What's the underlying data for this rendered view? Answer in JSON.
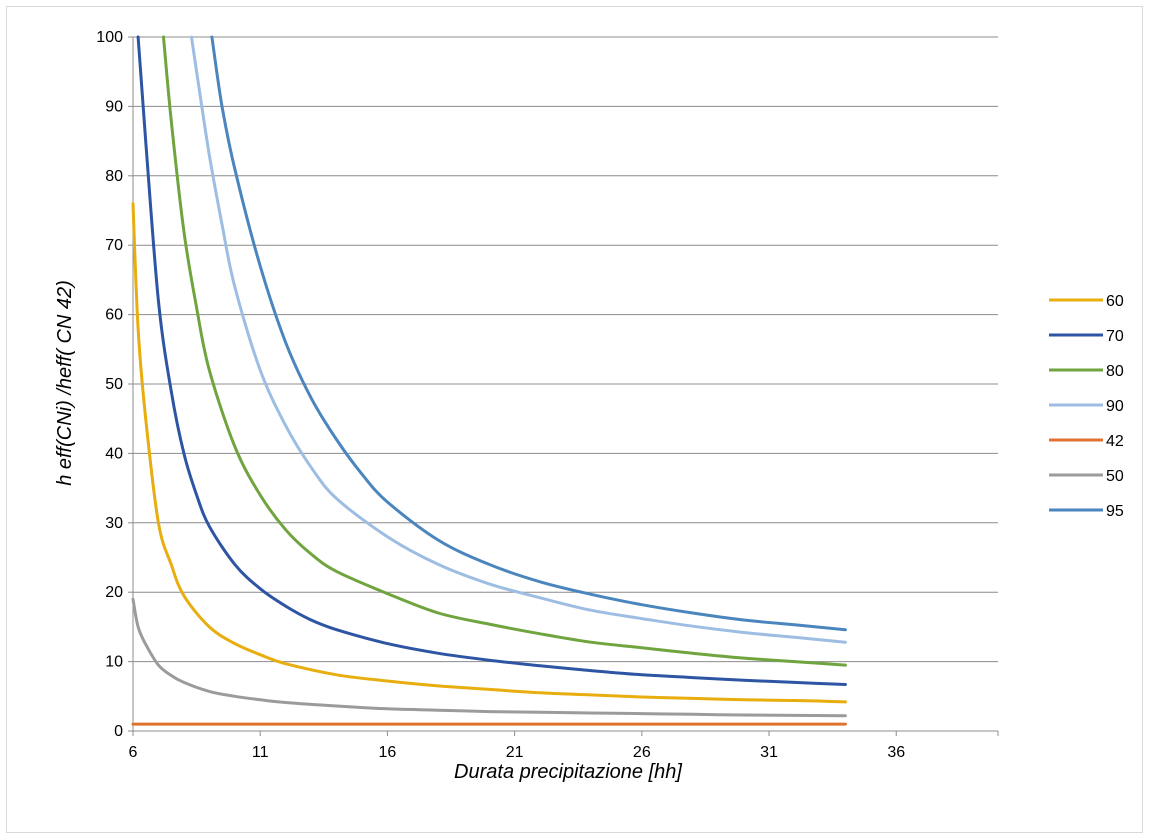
{
  "chart_data": {
    "type": "line",
    "title": "",
    "xlabel": "Durata precipitazione [hh]",
    "ylabel": "h eff(CNi) /heff( CN 42)",
    "xlim": [
      6,
      40
    ],
    "ylim": [
      0,
      100
    ],
    "x_ticks": [
      6,
      11,
      16,
      21,
      26,
      31,
      36
    ],
    "y_ticks": [
      0,
      10,
      20,
      30,
      40,
      50,
      60,
      70,
      80,
      90,
      100
    ],
    "grid": "horizontal",
    "legend_position": "right",
    "series": [
      {
        "name": "60",
        "color": "#e8ad0e",
        "x": [
          6,
          6.2,
          6.5,
          7,
          7.5,
          8,
          9,
          10,
          11,
          12,
          14,
          16,
          18,
          20,
          22,
          24,
          26,
          28,
          30,
          32,
          34
        ],
        "y": [
          76,
          58,
          45,
          30,
          24,
          19.5,
          15,
          12.6,
          11,
          9.7,
          8.1,
          7.2,
          6.5,
          6,
          5.5,
          5.2,
          4.9,
          4.7,
          4.5,
          4.4,
          4.2
        ]
      },
      {
        "name": "70",
        "color": "#2e55a3",
        "x": [
          6.2,
          6.5,
          7,
          7.5,
          8,
          8.5,
          9,
          10,
          11,
          12,
          13,
          14,
          16,
          18,
          20,
          22,
          24,
          26,
          28,
          30,
          32,
          34
        ],
        "y": [
          100,
          85,
          62,
          49,
          40,
          34,
          29.5,
          24,
          20.5,
          18,
          16,
          14.6,
          12.6,
          11.2,
          10.2,
          9.4,
          8.7,
          8.1,
          7.7,
          7.3,
          7,
          6.7
        ]
      },
      {
        "name": "80",
        "color": "#70a43f",
        "x": [
          7.2,
          7.5,
          8,
          8.5,
          9,
          10,
          11,
          12,
          13,
          14,
          16,
          18,
          20,
          22,
          24,
          26,
          28,
          30,
          32,
          34
        ],
        "y": [
          100,
          88,
          72,
          61,
          52,
          41,
          34,
          29,
          25.5,
          23,
          19.8,
          17,
          15.4,
          14,
          12.8,
          12,
          11.2,
          10.5,
          10,
          9.5
        ]
      },
      {
        "name": "90",
        "color": "#9dbde3",
        "x": [
          8.3,
          8.5,
          9,
          9.5,
          10,
          11,
          12,
          13,
          14,
          16,
          18,
          20,
          22,
          24,
          26,
          28,
          30,
          32,
          34
        ],
        "y": [
          100,
          95,
          83,
          73,
          64,
          52,
          44,
          38,
          33.5,
          28,
          24,
          21.2,
          19.2,
          17.4,
          16.2,
          15.1,
          14.2,
          13.5,
          12.8
        ]
      },
      {
        "name": "42",
        "color": "#e0722e",
        "x": [
          6,
          34
        ],
        "y": [
          1,
          1
        ]
      },
      {
        "name": "50",
        "color": "#9b9b9b",
        "x": [
          6,
          6.2,
          6.5,
          7,
          7.5,
          8,
          9,
          10,
          11,
          12,
          14,
          16,
          18,
          20,
          22,
          24,
          26,
          28,
          30,
          32,
          34
        ],
        "y": [
          19,
          15,
          12.5,
          9.5,
          8,
          7,
          5.7,
          5,
          4.5,
          4.1,
          3.6,
          3.2,
          3,
          2.8,
          2.7,
          2.6,
          2.5,
          2.4,
          2.3,
          2.25,
          2.2
        ]
      },
      {
        "name": "95",
        "color": "#4a85bd",
        "x": [
          9.1,
          9.5,
          10,
          11,
          12,
          13,
          14,
          15,
          16,
          18,
          20,
          22,
          24,
          26,
          28,
          30,
          32,
          34
        ],
        "y": [
          100,
          90,
          81,
          67,
          56,
          48,
          42,
          37,
          33,
          27.5,
          24,
          21.5,
          19.7,
          18.2,
          17,
          16,
          15.3,
          14.6
        ]
      }
    ]
  }
}
